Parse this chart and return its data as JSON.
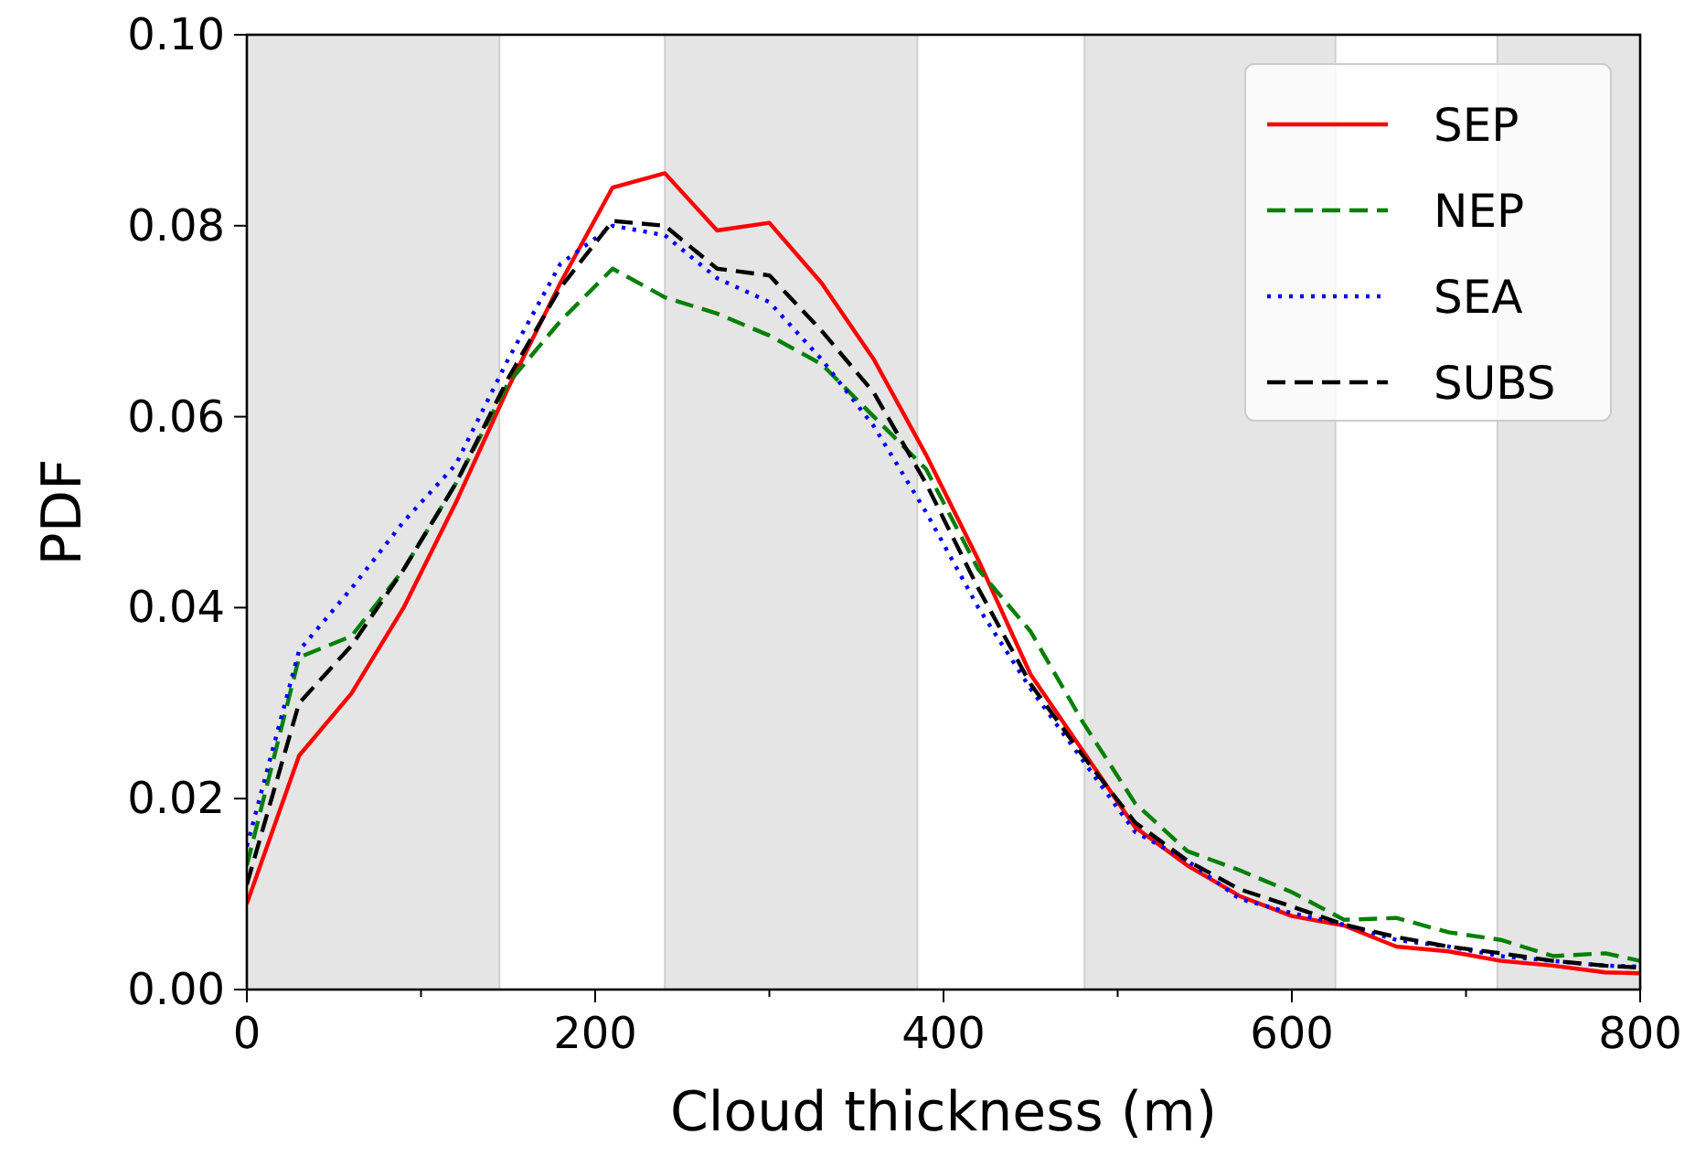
{
  "chart_data": {
    "type": "line",
    "xlabel": "Cloud thickness (m)",
    "ylabel": "PDF",
    "x": [
      0,
      30,
      60,
      90,
      120,
      150,
      180,
      210,
      240,
      270,
      300,
      330,
      360,
      390,
      420,
      450,
      480,
      510,
      540,
      570,
      600,
      630,
      660,
      690,
      720,
      750,
      780,
      800
    ],
    "series": [
      {
        "name": "SEP",
        "color": "#ff0000",
        "line_style": "solid",
        "values": [
          0.009,
          0.0245,
          0.031,
          0.04,
          0.051,
          0.063,
          0.074,
          0.084,
          0.0855,
          0.0795,
          0.0803,
          0.074,
          0.066,
          0.056,
          0.045,
          0.033,
          0.025,
          0.017,
          0.013,
          0.0098,
          0.0077,
          0.0067,
          0.0045,
          0.004,
          0.003,
          0.0025,
          0.0018,
          0.0017
        ]
      },
      {
        "name": "NEP",
        "color": "#008000",
        "line_style": "dashed",
        "values": [
          0.013,
          0.0348,
          0.037,
          0.044,
          0.053,
          0.0635,
          0.07,
          0.0755,
          0.0725,
          0.0708,
          0.0685,
          0.0655,
          0.06,
          0.0545,
          0.044,
          0.0375,
          0.028,
          0.0195,
          0.0145,
          0.0125,
          0.0102,
          0.0073,
          0.0075,
          0.006,
          0.0052,
          0.0035,
          0.0038,
          0.003
        ]
      },
      {
        "name": "SEA",
        "color": "#0000ff",
        "line_style": "dotted",
        "values": [
          0.015,
          0.0355,
          0.042,
          0.049,
          0.055,
          0.066,
          0.076,
          0.08,
          0.079,
          0.0745,
          0.072,
          0.066,
          0.059,
          0.05,
          0.04,
          0.0315,
          0.024,
          0.0165,
          0.0135,
          0.0095,
          0.008,
          0.0068,
          0.0052,
          0.0045,
          0.0035,
          0.003,
          0.0025,
          0.0024
        ]
      },
      {
        "name": "SUBS",
        "color": "#000000",
        "line_style": "dashed",
        "values": [
          0.011,
          0.03,
          0.036,
          0.044,
          0.053,
          0.064,
          0.0735,
          0.0805,
          0.08,
          0.0755,
          0.0748,
          0.069,
          0.0625,
          0.053,
          0.042,
          0.032,
          0.0245,
          0.0175,
          0.0135,
          0.0105,
          0.0087,
          0.0068,
          0.0055,
          0.0045,
          0.0038,
          0.003,
          0.0025,
          0.0023
        ]
      }
    ],
    "bands": [
      {
        "axis": "x",
        "from": 0,
        "to": 145,
        "color": "#e5e5e5"
      },
      {
        "axis": "x",
        "from": 240,
        "to": 385,
        "color": "#e5e5e5"
      },
      {
        "axis": "x",
        "from": 481,
        "to": 625,
        "color": "#e5e5e5"
      },
      {
        "axis": "x",
        "from": 718,
        "to": 800,
        "color": "#e5e5e5"
      }
    ],
    "xlim": [
      0,
      800
    ],
    "ylim": [
      0,
      0.1
    ],
    "xticks": [
      0,
      {
        "value": 100,
        "label": null
      },
      200,
      {
        "value": 300,
        "label": null
      },
      400,
      {
        "value": 500,
        "label": null
      },
      600,
      {
        "value": 700,
        "label": null
      },
      800
    ],
    "yticks": [
      {
        "value": 0,
        "label": "0.00"
      },
      {
        "value": 0.02,
        "label": "0.02"
      },
      {
        "value": 0.04,
        "label": "0.04"
      },
      {
        "value": 0.06,
        "label": "0.06"
      },
      {
        "value": 0.08,
        "label": "0.08"
      },
      {
        "value": 0.1,
        "label": "0.10"
      }
    ],
    "legend": "top right",
    "grid": false
  }
}
